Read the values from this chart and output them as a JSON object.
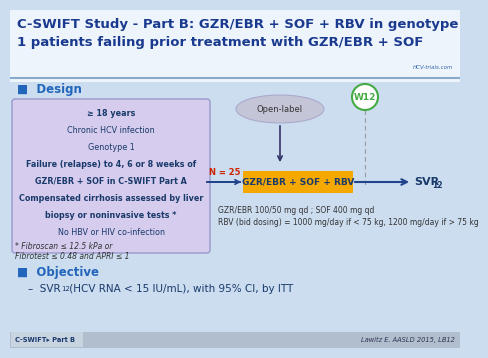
{
  "title_line1": "C-SWIFT Study - Part B: GZR/EBR + SOF + RBV in genotype",
  "title_line2": "1 patients failing prior treatment with GZR/EBR + SOF",
  "title_color": "#1a3a8f",
  "title_fontsize": 9.5,
  "bg_color": "#ccddf0",
  "header_bg": "#e8f0f8",
  "design_label": "■  Design",
  "design_color": "#2266bb",
  "inclusion_lines": [
    "≥ 18 years",
    "Chronic HCV infection",
    "Genotype 1",
    "Failure (relapse) to 4, 6 or 8 weeks of",
    "GZR/EBR + SOF in C-SWIFT Part A",
    "Compensated cirrhosis assessed by liver",
    "biopsy or noninvasive tests *",
    "No HBV or HIV co-infection"
  ],
  "inclusion_box_color": "#d5ccee",
  "inclusion_border_color": "#9999cc",
  "open_label_text": "Open-label",
  "open_label_fill": "#c5c5d8",
  "w12_text": "W12",
  "w12_color": "#44aa44",
  "n25_text": "N = 25",
  "n25_color": "#cc2200",
  "treatment_text": "GZR/EBR + SOF + RBV",
  "treatment_fill": "#f5a800",
  "treatment_text_color": "#1a3a6b",
  "svr_text": "SVR",
  "svr_sub": "12",
  "arrow_color": "#22448a",
  "dosing_line1": "GZR/EBR 100/50 mg qd ; SOF 400 mg qd",
  "dosing_line2": "RBV (bid dosing) = 1000 mg/day if < 75 kg, 1200 mg/day if > 75 kg",
  "footnote_line1": "* Fibroscan ≤ 12.5 kPa or",
  "footnote_line2": "Fibrotest ≤ 0.48 and APRI ≤ 1",
  "objective_label": "■  Objective",
  "objective_color": "#2266bb",
  "objective_dash": "–",
  "objective_svr": "SVR",
  "objective_sub": "12",
  "objective_rest": " (HCV RNA < 15 IU/mL), with 95% CI, by ITT",
  "footer_left": "C-SWIFT▸ Part B",
  "footer_right": "Lawitz E. AASLD 2015, LB12",
  "hcv_text": "HCV-trials.com"
}
